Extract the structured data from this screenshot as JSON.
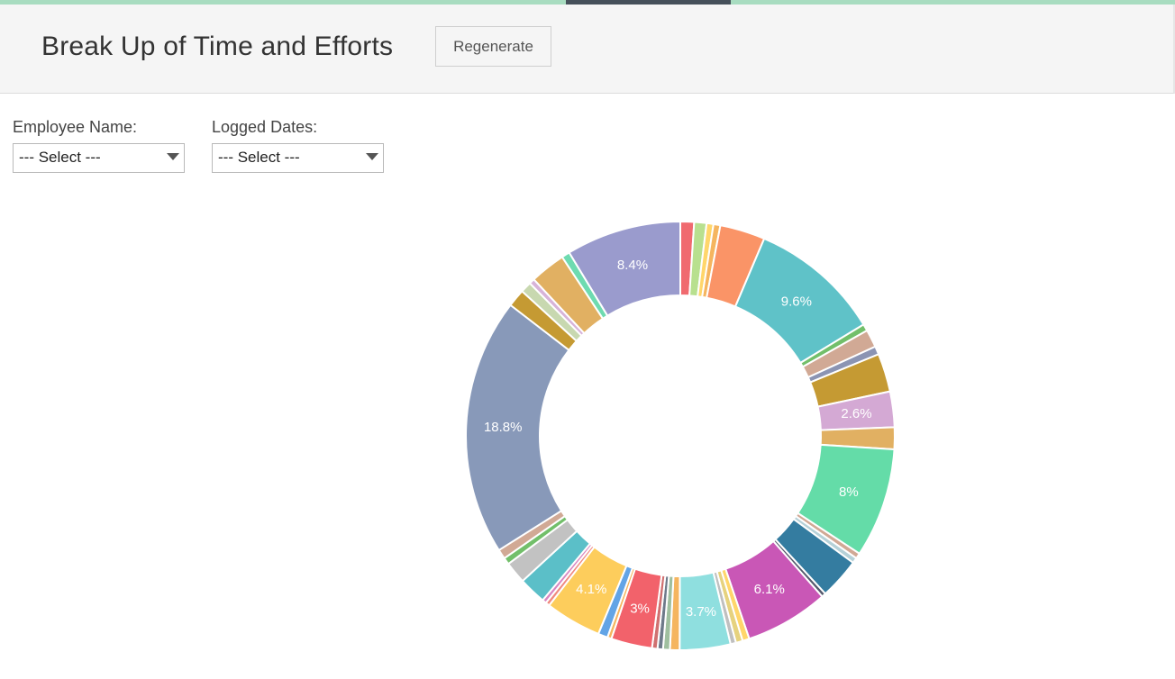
{
  "header": {
    "title": "Break Up of Time and Efforts",
    "regenerate_label": "Regenerate"
  },
  "filters": {
    "employee": {
      "label": "Employee Name:",
      "value": "--- Select ---"
    },
    "dates": {
      "label": "Logged Dates:",
      "value": "--- Select ---"
    }
  },
  "chart_data": {
    "type": "pie",
    "donut": true,
    "title": "",
    "legend": "none",
    "slices": [
      {
        "value": 1.0,
        "color": "#f06a6f"
      },
      {
        "value": 0.9,
        "color": "#b8e08f"
      },
      {
        "value": 0.5,
        "color": "#ffd66b"
      },
      {
        "value": 0.5,
        "color": "#f5b55f"
      },
      {
        "value": 3.3,
        "color": "#fa9467"
      },
      {
        "value": 9.6,
        "color": "#5fc2c8",
        "label": "9.6%"
      },
      {
        "value": 0.5,
        "color": "#72bf6a"
      },
      {
        "value": 1.3,
        "color": "#d1a995"
      },
      {
        "value": 0.6,
        "color": "#8b94b3"
      },
      {
        "value": 2.8,
        "color": "#c59a33"
      },
      {
        "value": 2.6,
        "color": "#d4a9d4",
        "label": "2.6%"
      },
      {
        "value": 1.6,
        "color": "#e1b062"
      },
      {
        "value": 8.0,
        "color": "#64dca8",
        "label": "8%"
      },
      {
        "value": 0.4,
        "color": "#d1a995"
      },
      {
        "value": 0.4,
        "color": "#b5d1d8"
      },
      {
        "value": 3.0,
        "color": "#347ca0"
      },
      {
        "value": 0.3,
        "color": "#555a6d"
      },
      {
        "value": 6.1,
        "color": "#c957b6",
        "label": "6.1%"
      },
      {
        "value": 0.5,
        "color": "#ffd66b"
      },
      {
        "value": 0.5,
        "color": "#e6d27e"
      },
      {
        "value": 0.4,
        "color": "#bfbfbf"
      },
      {
        "value": 3.7,
        "color": "#8fdfdf",
        "label": "3.7%"
      },
      {
        "value": 0.7,
        "color": "#f5b55f"
      },
      {
        "value": 0.5,
        "color": "#9fbf9f"
      },
      {
        "value": 0.4,
        "color": "#6e7a8a"
      },
      {
        "value": 0.4,
        "color": "#d07070"
      },
      {
        "value": 3.0,
        "color": "#f2626b",
        "label": "3%"
      },
      {
        "value": 0.3,
        "color": "#f5b55f"
      },
      {
        "value": 0.7,
        "color": "#62a4e6"
      },
      {
        "value": 4.1,
        "color": "#fdcd5c",
        "label": "4.1%"
      },
      {
        "value": 0.3,
        "color": "#f08a80"
      },
      {
        "value": 0.3,
        "color": "#d986c2"
      },
      {
        "value": 2.0,
        "color": "#5bbfc8"
      },
      {
        "value": 1.6,
        "color": "#c2c2c2"
      },
      {
        "value": 0.5,
        "color": "#72bf6a"
      },
      {
        "value": 0.7,
        "color": "#d1a995"
      },
      {
        "value": 18.8,
        "color": "#8899b9",
        "label": "18.8%"
      },
      {
        "value": 1.3,
        "color": "#c59a33"
      },
      {
        "value": 0.8,
        "color": "#c8d8b0"
      },
      {
        "value": 0.4,
        "color": "#d7b3d9"
      },
      {
        "value": 2.6,
        "color": "#e1b062"
      },
      {
        "value": 0.6,
        "color": "#6edbb0"
      },
      {
        "value": 8.4,
        "color": "#9a9bcd",
        "label": "8.4%"
      }
    ]
  }
}
